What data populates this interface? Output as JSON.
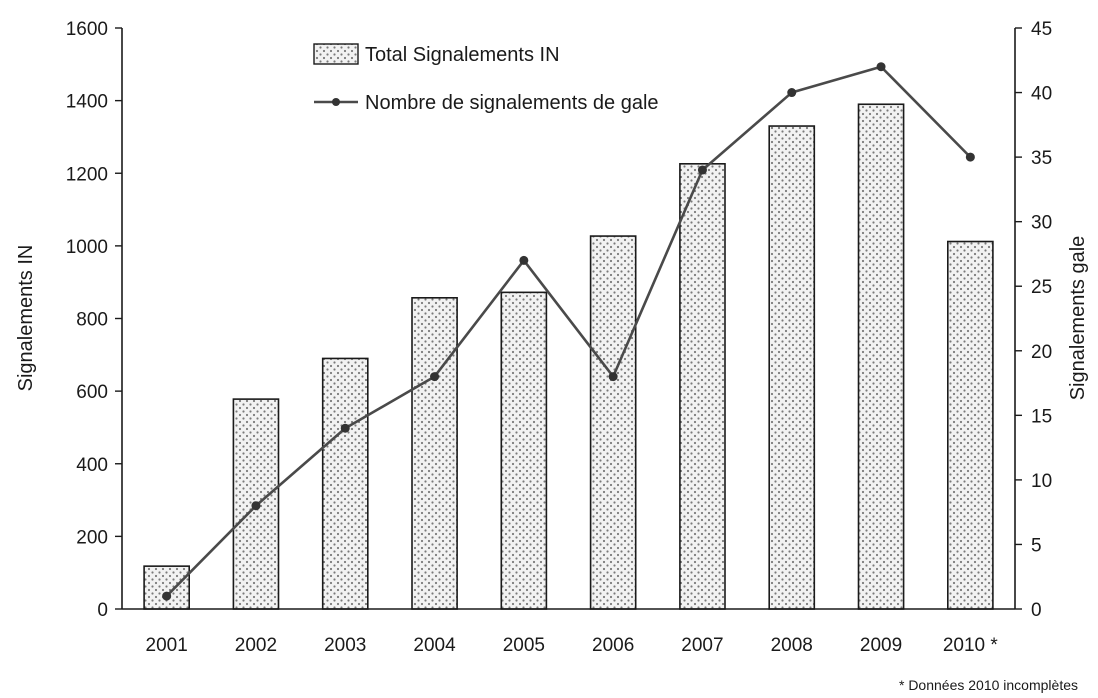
{
  "chart_data": {
    "type": "bar",
    "categories": [
      "2001",
      "2002",
      "2003",
      "2004",
      "2005",
      "2006",
      "2007",
      "2008",
      "2009",
      "2010 *"
    ],
    "series": [
      {
        "name": "Total Signalements IN",
        "type": "bar",
        "axis": "left",
        "values": [
          118,
          578,
          690,
          857,
          872,
          1027,
          1226,
          1330,
          1390,
          1012
        ]
      },
      {
        "name": "Nombre de signalements de gale",
        "type": "line",
        "axis": "right",
        "values": [
          1,
          8,
          14,
          18,
          27,
          18,
          34,
          40,
          42,
          35
        ]
      }
    ],
    "ylabel": "Signalements IN",
    "y2label": "Signalements gale",
    "ylim": [
      0,
      1600
    ],
    "y2lim": [
      0,
      45
    ],
    "yticks": [
      "0",
      "200",
      "400",
      "600",
      "800",
      "1000",
      "1200",
      "1400",
      "1600"
    ],
    "y2ticks": [
      "0",
      "5",
      "10",
      "15",
      "20",
      "25",
      "30",
      "35",
      "40",
      "45"
    ],
    "legend_position": "top-left",
    "grid": false,
    "footnote": "* Données 2010 incomplètes"
  },
  "colors": {
    "bar_fill": "#f2f2f2",
    "bar_dots": "#7a7a7a",
    "bar_stroke": "#1a1a1a",
    "line": "#4a4a4a",
    "marker": "#333333",
    "axis": "#1a1a1a"
  }
}
